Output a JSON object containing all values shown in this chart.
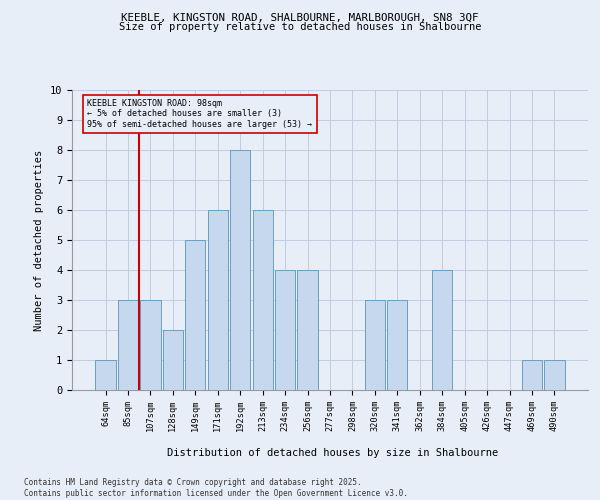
{
  "title1": "KEEBLE, KINGSTON ROAD, SHALBOURNE, MARLBOROUGH, SN8 3QF",
  "title2": "Size of property relative to detached houses in Shalbourne",
  "xlabel": "Distribution of detached houses by size in Shalbourne",
  "ylabel": "Number of detached properties",
  "categories": [
    "64sqm",
    "85sqm",
    "107sqm",
    "128sqm",
    "149sqm",
    "171sqm",
    "192sqm",
    "213sqm",
    "234sqm",
    "256sqm",
    "277sqm",
    "298sqm",
    "320sqm",
    "341sqm",
    "362sqm",
    "384sqm",
    "405sqm",
    "426sqm",
    "447sqm",
    "469sqm",
    "490sqm"
  ],
  "bar_heights": [
    1,
    3,
    3,
    2,
    5,
    6,
    8,
    6,
    4,
    4,
    0,
    0,
    3,
    3,
    0,
    4,
    0,
    0,
    0,
    1,
    1
  ],
  "bar_color": "#c5d8ed",
  "bar_edge_color": "#6a9ec0",
  "vline_color": "#cc0000",
  "vline_x_index": 1.5,
  "ylim": [
    0,
    10
  ],
  "yticks": [
    0,
    1,
    2,
    3,
    4,
    5,
    6,
    7,
    8,
    9,
    10
  ],
  "annotation_title": "KEEBLE KINGSTON ROAD: 98sqm",
  "annotation_line1": "← 5% of detached houses are smaller (3)",
  "annotation_line2": "95% of semi-detached houses are larger (53) →",
  "annotation_box_color": "#cc0000",
  "footer1": "Contains HM Land Registry data © Crown copyright and database right 2025.",
  "footer2": "Contains public sector information licensed under the Open Government Licence v3.0.",
  "bg_color": "#e8eef8",
  "plot_bg_color": "#e8eef8",
  "grid_color": "#c0cce0"
}
